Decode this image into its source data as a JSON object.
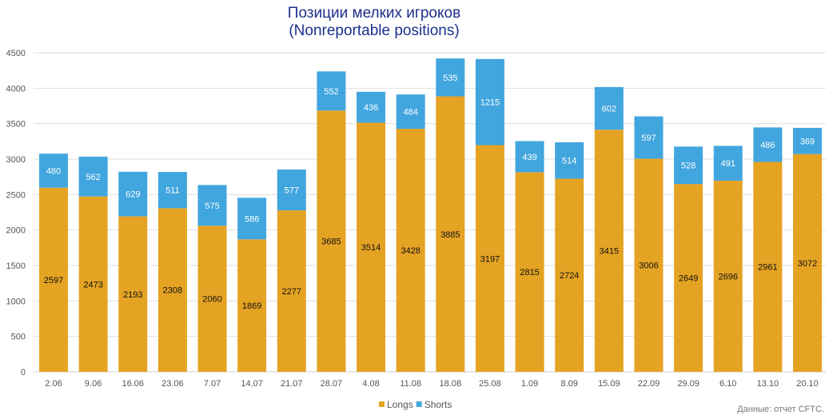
{
  "chart_data": {
    "type": "bar",
    "stacked": true,
    "title": "Позиции мелких игроков",
    "subtitle": "(Nonreportable positions)",
    "categories": [
      "2.06",
      "9.06",
      "16.06",
      "23.06",
      "7.07",
      "14.07",
      "21.07",
      "28.07",
      "4.08",
      "11.08",
      "18.08",
      "25.08",
      "1.09",
      "8.09",
      "15.09",
      "22.09",
      "29.09",
      "6.10",
      "13.10",
      "20.10"
    ],
    "series": [
      {
        "name": "Longs",
        "color": "#e5a323",
        "values": [
          2597,
          2473,
          2193,
          2308,
          2060,
          1869,
          2277,
          3685,
          3514,
          3428,
          3885,
          3197,
          2815,
          2724,
          3415,
          3006,
          2649,
          2696,
          2961,
          3072
        ]
      },
      {
        "name": "Shorts",
        "color": "#42a6de",
        "values": [
          480,
          562,
          629,
          511,
          575,
          586,
          577,
          552,
          436,
          484,
          535,
          1215,
          439,
          514,
          602,
          597,
          528,
          491,
          486,
          369
        ]
      }
    ],
    "ylim": [
      0,
      4500
    ],
    "yticks": [
      0,
      500,
      1000,
      1500,
      2000,
      2500,
      3000,
      3500,
      4000,
      4500
    ],
    "grid": true,
    "legend": "bottom",
    "source": "Данные: отчет CFTC."
  }
}
